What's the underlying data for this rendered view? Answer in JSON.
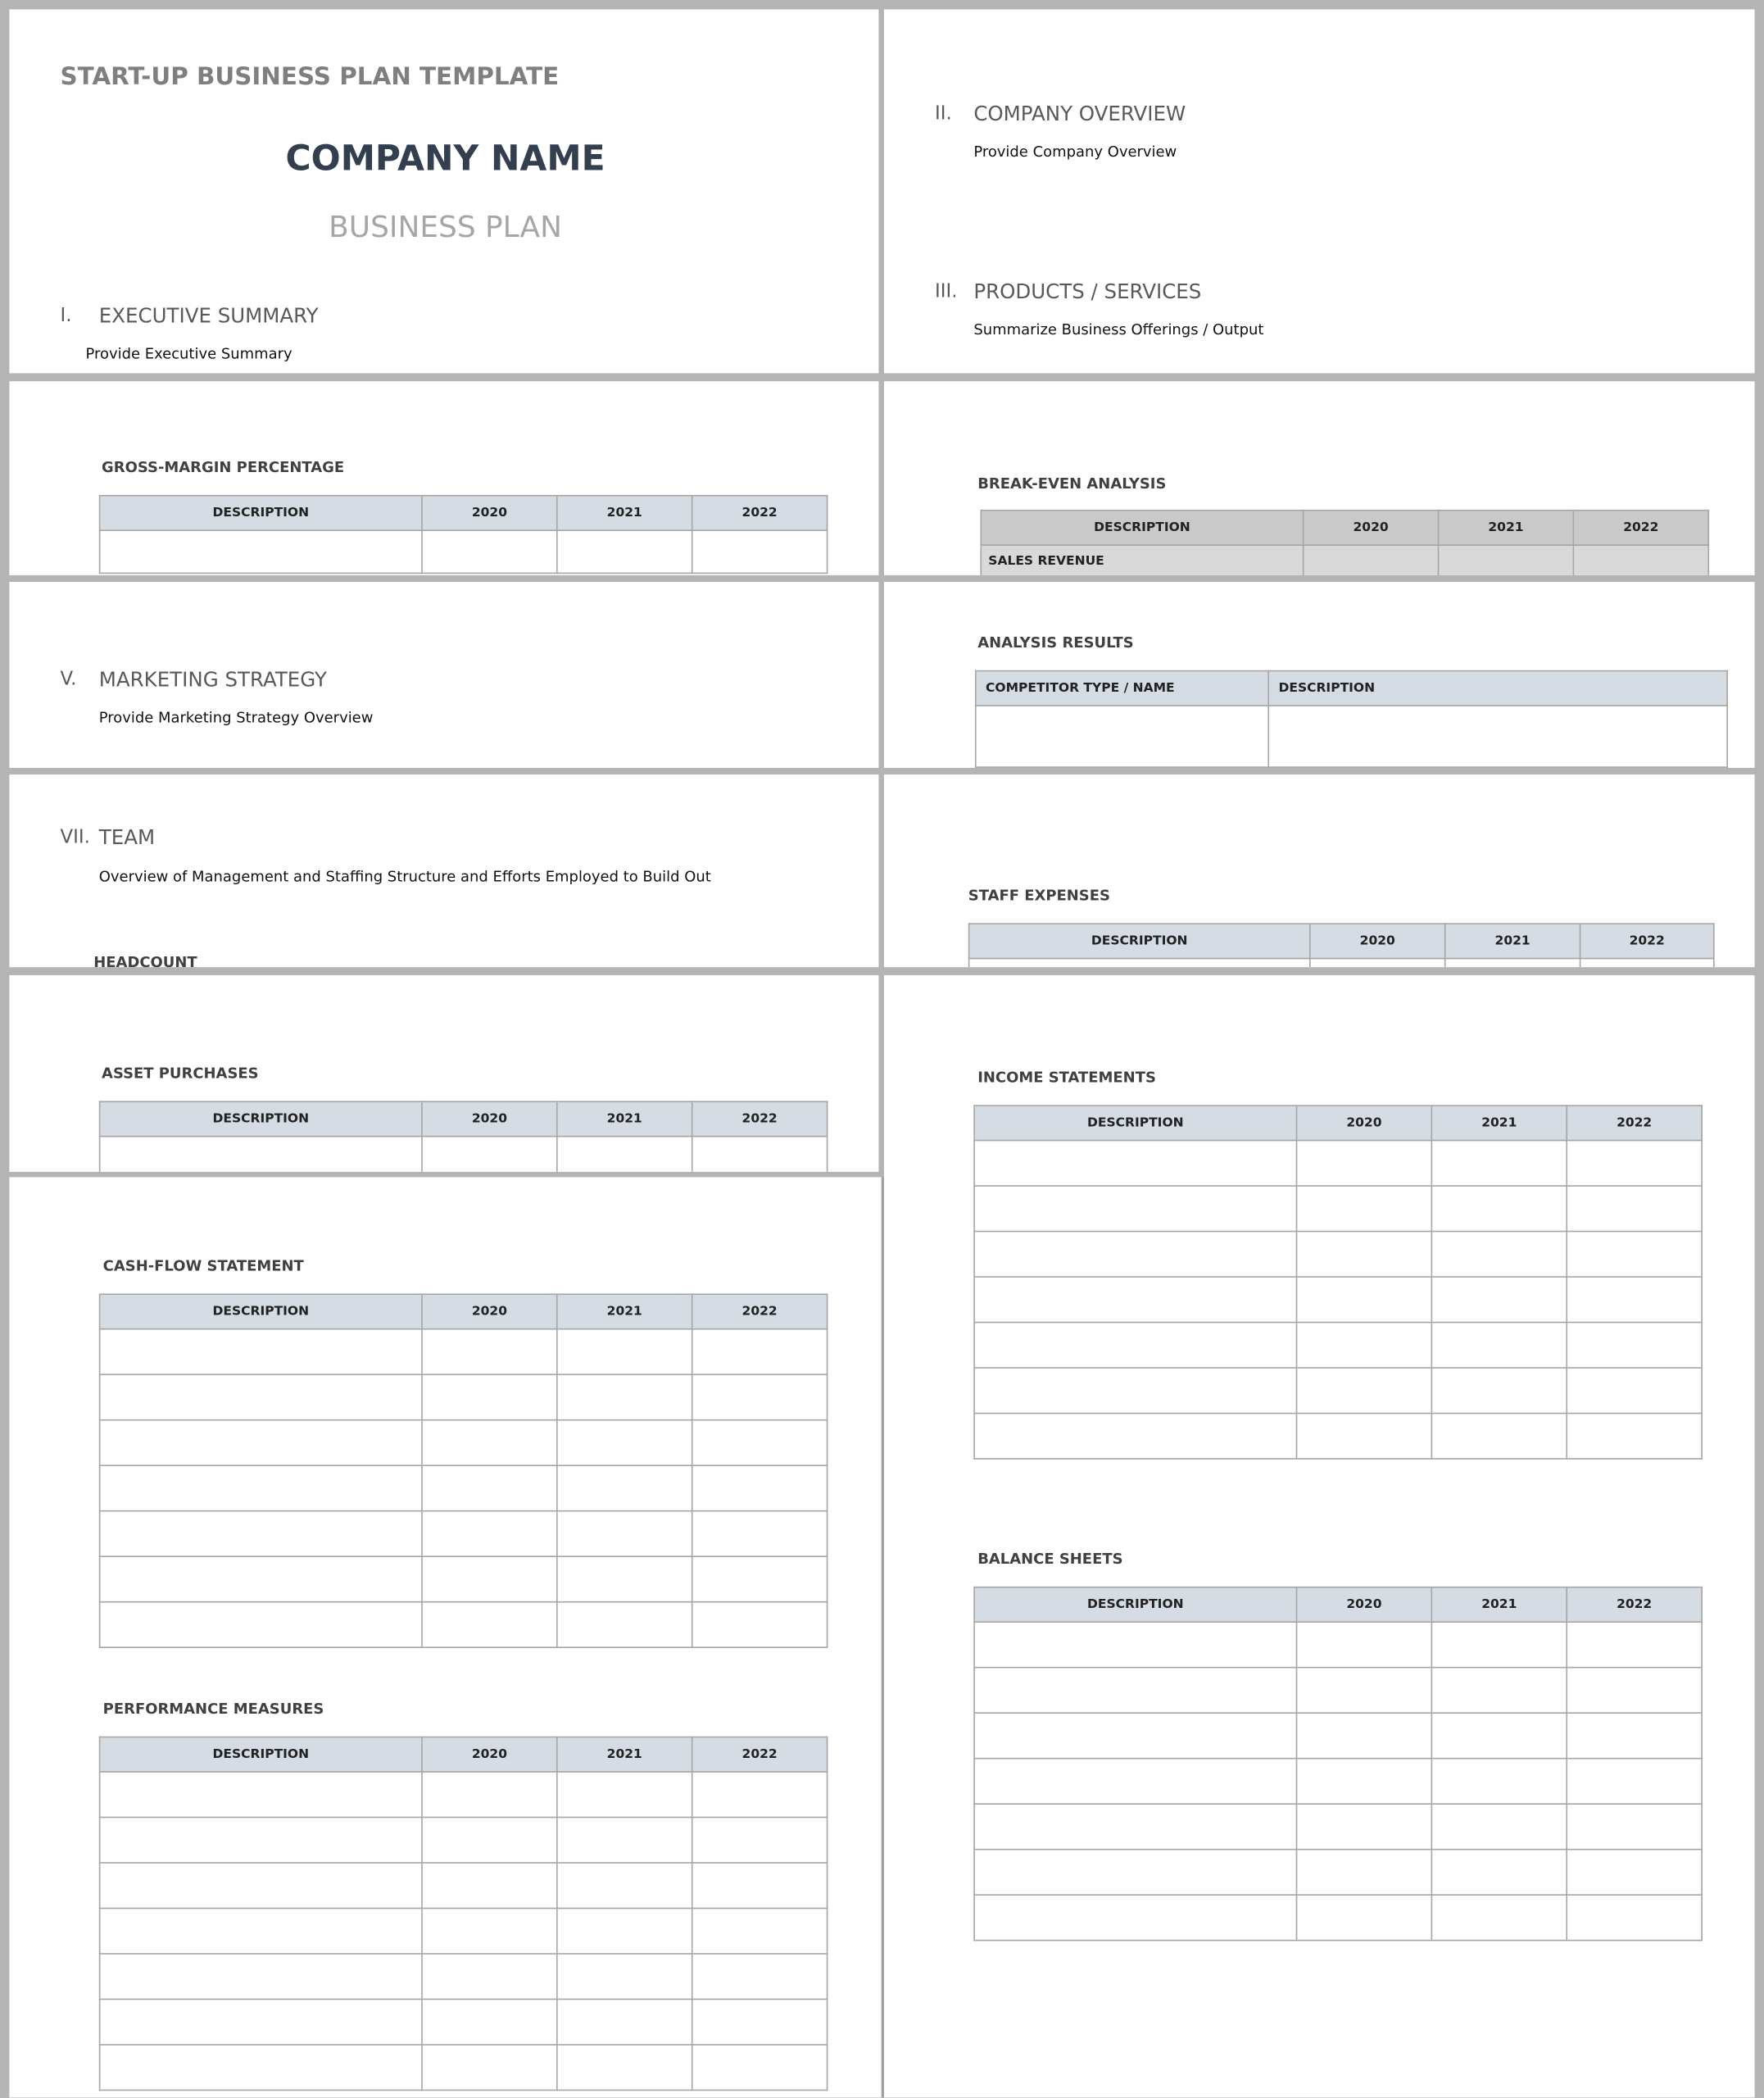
{
  "header": {
    "template_title": "START-UP BUSINESS PLAN TEMPLATE",
    "company_name": "COMPANY NAME",
    "document_type": "BUSINESS PLAN"
  },
  "sections": [
    {
      "number": "I.",
      "title": "EXECUTIVE SUMMARY",
      "text": "Provide Executive Summary"
    },
    {
      "number": "II.",
      "title": "COMPANY OVERVIEW",
      "text": "Provide Company Overview"
    },
    {
      "number": "III.",
      "title": "PRODUCTS / SERVICES",
      "text": "Summarize Business Offerings / Output"
    },
    {
      "number": "V.",
      "title": "MARKETING STRATEGY",
      "text": "Provide Marketing Strategy Overview"
    },
    {
      "number": "VII.",
      "title": "TEAM",
      "text": "Overview of Management and Staffing Structure and Efforts Employed to Build Out"
    }
  ],
  "tables": [
    {
      "title": "GROSS-MARGIN PERCENTAGE",
      "columns": [
        "DESCRIPTION",
        "2020",
        "2021",
        "2022"
      ]
    },
    {
      "title": "BREAK-EVEN ANALYSIS",
      "columns": [
        "DESCRIPTION",
        "2020",
        "2021",
        "2022"
      ],
      "rows": [
        [
          "SALES REVENUE"
        ]
      ]
    },
    {
      "title": "ANALYSIS RESULTS",
      "columns": [
        "COMPETITOR TYPE / NAME",
        "DESCRIPTION"
      ]
    },
    {
      "title": "HEADCOUNT"
    },
    {
      "title": "STAFF EXPENSES",
      "columns": [
        "DESCRIPTION",
        "2020",
        "2021",
        "2022"
      ]
    },
    {
      "title": "ASSET PURCHASES",
      "columns": [
        "DESCRIPTION",
        "2020",
        "2021",
        "2022"
      ]
    },
    {
      "title": "INCOME STATEMENTS",
      "columns": [
        "DESCRIPTION",
        "2020",
        "2021",
        "2022"
      ]
    },
    {
      "title": "CASH-FLOW STATEMENT",
      "columns": [
        "DESCRIPTION",
        "2020",
        "2021",
        "2022"
      ]
    },
    {
      "title": "PERFORMANCE MEASURES",
      "columns": [
        "DESCRIPTION",
        "2020",
        "2021",
        "2022"
      ]
    },
    {
      "title": "BALANCE SHEETS",
      "columns": [
        "DESCRIPTION",
        "2020",
        "2021",
        "2022"
      ]
    }
  ]
}
